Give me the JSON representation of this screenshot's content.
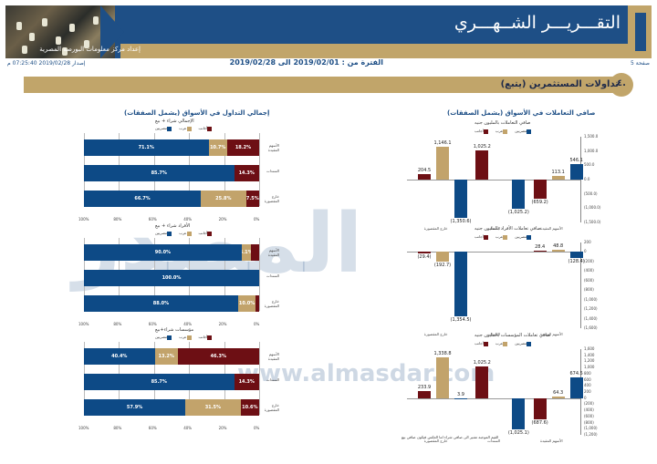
{
  "header": {
    "title": "التقـــريـــر الشــهـــري",
    "subtitle": "إعداد مركز معلومات البورصة المصرية",
    "page": "صفحة 5",
    "issue": "إصدار 2019/02/28 07:25:40 م",
    "period": "الفترة من : 2019/02/01 الى 2019/02/28"
  },
  "section": {
    "number": "٤.",
    "title": "تداولات المستثمرين (يتبع)"
  },
  "left_heading": "إجمالي التداول في الأسواق (يشمل الصفقات)",
  "right_heading": "صافي التعاملات في الأسواق (يشمل الصفقات)",
  "watermark": {
    "text": "المصدر",
    "url": "www.almasdar.com"
  },
  "legend": [
    "مصريين",
    "عرب",
    "أجانب"
  ],
  "colors": {
    "blue": "#0d4a86",
    "gold": "#c2a36b",
    "red": "#6d0f14",
    "navy": "#1e4f86"
  },
  "x_ticks": [
    "100%",
    "80%",
    "60%",
    "40%",
    "20%",
    "0%"
  ],
  "chart_data": [
    {
      "type": "bar",
      "title": "الإجمالي شراء + بيع",
      "orientation": "horizontal-stacked",
      "categories": [
        "الأسهم المقيدة",
        "السندات",
        "خارج المقصورة"
      ],
      "series": [
        {
          "name": "مصريين",
          "values": [
            71.1,
            85.7,
            66.7
          ],
          "labels": [
            "71.1%",
            "85.7%",
            "66.7%"
          ]
        },
        {
          "name": "عرب",
          "values": [
            10.7,
            0,
            25.8
          ],
          "labels": [
            "10.7%",
            "",
            "25.8%"
          ]
        },
        {
          "name": "أجانب",
          "values": [
            18.2,
            14.3,
            7.5
          ],
          "labels": [
            "18.2%",
            "14.3%",
            "7.5%"
          ]
        }
      ]
    },
    {
      "type": "bar",
      "title": "الأفراد شراء + بيع",
      "orientation": "horizontal-stacked",
      "categories": [
        "الأسهم المقيدة",
        "السندات",
        "خارج المقصورة"
      ],
      "series": [
        {
          "name": "مصريين",
          "values": [
            90.0,
            100.0,
            88.0
          ],
          "labels": [
            "90.0%",
            "100.0%",
            "88.0%"
          ]
        },
        {
          "name": "عرب",
          "values": [
            5.1,
            0,
            10.0
          ],
          "labels": [
            "5.1%",
            "",
            "10.0%"
          ]
        },
        {
          "name": "أجانب",
          "values": [
            4.9,
            0,
            2.0
          ],
          "labels": [
            "",
            "",
            ""
          ]
        }
      ]
    },
    {
      "type": "bar",
      "title": "مؤسسات شراء+بيع",
      "orientation": "horizontal-stacked",
      "categories": [
        "الأسهم المقيدة",
        "السندات",
        "خارج المقصورة"
      ],
      "series": [
        {
          "name": "مصريين",
          "values": [
            40.4,
            85.7,
            57.9
          ],
          "labels": [
            "40.4%",
            "85.7%",
            "57.9%"
          ]
        },
        {
          "name": "عرب",
          "values": [
            13.2,
            0,
            31.5
          ],
          "labels": [
            "13.2%",
            "",
            "31.5%"
          ]
        },
        {
          "name": "أجانب",
          "values": [
            46.3,
            14.3,
            10.6
          ],
          "labels": [
            "46.3%",
            "14.3%",
            "10.6%"
          ]
        }
      ]
    },
    {
      "type": "bar",
      "title": "صافي التعاملات بالمليون جنيه",
      "categories": [
        "خارج المقصورة",
        "السندات",
        "الأسهم المقيدة"
      ],
      "series": [
        {
          "name": "أجانب",
          "values": [
            204.5,
            1025.2,
            -659.2
          ]
        },
        {
          "name": "عرب",
          "values": [
            1146.1,
            0,
            113.1
          ]
        },
        {
          "name": "مصريين",
          "values": [
            -1350.6,
            -1025.2,
            546.1
          ]
        }
      ],
      "value_labels": [
        "204.5",
        "1,146.1",
        "(1,350.6)",
        "1,025.2",
        "(1,025.2)",
        "(659.2)",
        "113.1",
        "546.1"
      ],
      "ylim": [
        -1500,
        1500
      ],
      "y_ticks": [
        "1,500.0",
        "1,000.0",
        "500.0",
        "0.0",
        "(500.0)",
        "(1,000.0)",
        "(1,500.0)"
      ]
    },
    {
      "type": "bar",
      "title": "صافي تعاملات الأفراد بالمليون جنيه",
      "categories": [
        "خارج المقصورة",
        "السندات",
        "الأسهم المقيدة"
      ],
      "series": [
        {
          "name": "أجانب",
          "values": [
            -29.4,
            0,
            28.4
          ]
        },
        {
          "name": "عرب",
          "values": [
            -192.7,
            0,
            48.8
          ]
        },
        {
          "name": "مصريين",
          "values": [
            -1354.5,
            0,
            -128.4
          ]
        }
      ],
      "value_labels": [
        "(29.4)",
        "(192.7)",
        "(1,354.5)",
        "28.4",
        "48.8",
        "(128.4)"
      ],
      "ylim": [
        -1600,
        200
      ],
      "y_ticks": [
        "200",
        "0",
        "(200)",
        "(400)",
        "(600)",
        "(800)",
        "(1,000)",
        "(1,200)",
        "(1,400)",
        "(1,600)"
      ]
    },
    {
      "type": "bar",
      "title": "صافي تعاملات المؤسسات بالمليون جنيه",
      "categories": [
        "خارج المقصورة",
        "السندات",
        "الأسهم المقيدة"
      ],
      "series": [
        {
          "name": "أجانب",
          "values": [
            233.9,
            1025.2,
            -687.6
          ]
        },
        {
          "name": "عرب",
          "values": [
            1338.8,
            0,
            64.3
          ]
        },
        {
          "name": "مصريين",
          "values": [
            3.9,
            -1025.1,
            674.5
          ]
        }
      ],
      "value_labels": [
        "233.9",
        "1,338.8",
        "3.9",
        "1,025.2",
        "(1,025.1)",
        "(687.6)",
        "64.3",
        "674.5"
      ],
      "ylim": [
        -1200,
        1600
      ],
      "y_ticks": [
        "1,600",
        "1,400",
        "1,200",
        "1,000",
        "800",
        "600",
        "400",
        "200",
        "0",
        "(200)",
        "(400)",
        "(600)",
        "(800)",
        "(1,000)",
        "(1,200)"
      ]
    }
  ],
  "footnote": "القيم الموجبة تشير الى صافي شراء اما العكس فيكون صافي بيع"
}
